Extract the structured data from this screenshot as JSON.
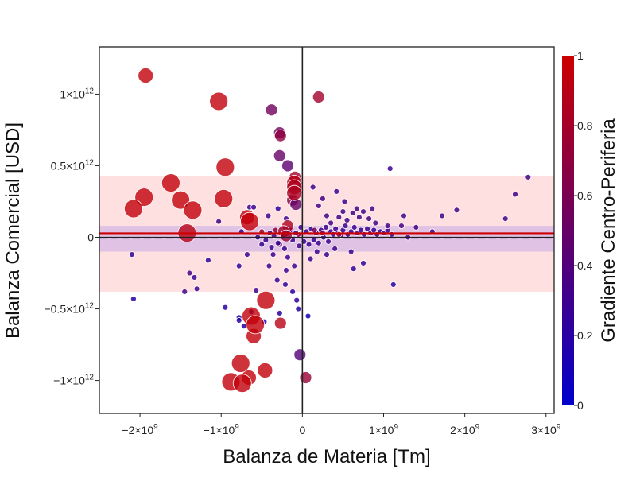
{
  "chart_data": {
    "type": "scatter",
    "xlabel": "Balanza de Materia [Tm]",
    "ylabel": "Balanza Comercial [USD]",
    "colorbar_label": "Gradiente Centro-Periferia",
    "xlim": [
      -2500000000,
      3100000000
    ],
    "ylim": [
      -1230000000000,
      1330000000000
    ],
    "x_ticks": [
      {
        "value": -2000000000,
        "mant": "−2×10",
        "exp": "9"
      },
      {
        "value": -1000000000,
        "mant": "−1×10",
        "exp": "9"
      },
      {
        "value": 0,
        "mant": "0",
        "exp": ""
      },
      {
        "value": 1000000000,
        "mant": "1×10",
        "exp": "9"
      },
      {
        "value": 2000000000,
        "mant": "2×10",
        "exp": "9"
      },
      {
        "value": 3000000000,
        "mant": "3×10",
        "exp": "9"
      }
    ],
    "y_ticks": [
      {
        "value": 1000000000000,
        "mant": "1×10",
        "exp": "12"
      },
      {
        "value": 500000000000,
        "mant": "0.5×10",
        "exp": "12"
      },
      {
        "value": 0,
        "mant": "0",
        "exp": ""
      },
      {
        "value": -500000000000,
        "mant": "−0.5×10",
        "exp": "12"
      },
      {
        "value": -1000000000000,
        "mant": "−1×10",
        "exp": "12"
      }
    ],
    "colorbar_ticks": [
      {
        "value": 0,
        "label": "0"
      },
      {
        "value": 0.2,
        "label": "0.2"
      },
      {
        "value": 0.4,
        "label": "0.4"
      },
      {
        "value": 0.6,
        "label": "0.6"
      },
      {
        "value": 0.8,
        "label": "0.8"
      },
      {
        "value": 1,
        "label": "1"
      }
    ],
    "colorscale": [
      "#0000cc",
      "#cc0000"
    ],
    "bands": [
      {
        "y0": -380000000000,
        "y1": 430000000000,
        "color": "#ffd6d6",
        "opacity": 0.75
      },
      {
        "y0": -100000000000,
        "y1": 80000000000,
        "color": "#d4b8e6",
        "opacity": 0.75
      }
    ],
    "reference_lines": [
      {
        "y": 28000000000,
        "color": "#cc0000",
        "dash": "solid"
      },
      {
        "y": -3000000000,
        "color": "#1a1a8c",
        "dash": "dash"
      }
    ],
    "zero_lines": {
      "x": 0,
      "y": 0,
      "color": "#222222"
    },
    "points": [
      {
        "x": -1930000000.0,
        "y": 1130000000000.0,
        "c": 0.95,
        "s": 3
      },
      {
        "x": -1030000000.0,
        "y": 950000000000.0,
        "c": 0.95,
        "s": 4
      },
      {
        "x": -950000000.0,
        "y": 490000000000.0,
        "c": 0.95,
        "s": 4
      },
      {
        "x": -1620000000.0,
        "y": 380000000000.0,
        "c": 0.95,
        "s": 4
      },
      {
        "x": -1950000000.0,
        "y": 280000000000.0,
        "c": 0.95,
        "s": 4
      },
      {
        "x": -1500000000.0,
        "y": 260000000000.0,
        "c": 0.95,
        "s": 4
      },
      {
        "x": -2080000000.0,
        "y": 200000000000.0,
        "c": 0.95,
        "s": 4
      },
      {
        "x": -1350000000.0,
        "y": 190000000000.0,
        "c": 0.95,
        "s": 4
      },
      {
        "x": -970000000.0,
        "y": 270000000000.0,
        "c": 0.95,
        "s": 4
      },
      {
        "x": -1420000000.0,
        "y": 30000000000.0,
        "c": 0.9,
        "s": 4
      },
      {
        "x": -650000000.0,
        "y": 110000000000.0,
        "c": 0.95,
        "s": 4
      },
      {
        "x": -680000000.0,
        "y": 140000000000.0,
        "c": 0.93,
        "s": 3
      },
      {
        "x": -450000000.0,
        "y": -440000000000.0,
        "c": 0.95,
        "s": 4
      },
      {
        "x": -630000000.0,
        "y": -550000000000.0,
        "c": 0.95,
        "s": 4
      },
      {
        "x": -580000000.0,
        "y": -610000000000.0,
        "c": 0.95,
        "s": 4
      },
      {
        "x": -600000000.0,
        "y": -690000000000.0,
        "c": 0.95,
        "s": 3
      },
      {
        "x": -270000000.0,
        "y": -600000000000.0,
        "c": 0.9,
        "s": 2
      },
      {
        "x": -760000000.0,
        "y": -880000000000.0,
        "c": 0.95,
        "s": 4
      },
      {
        "x": -880000000.0,
        "y": -1010000000000.0,
        "c": 0.95,
        "s": 4
      },
      {
        "x": -740000000.0,
        "y": -1020000000000.0,
        "c": 0.95,
        "s": 4
      },
      {
        "x": -660000000.0,
        "y": -980000000000.0,
        "c": 0.95,
        "s": 3
      },
      {
        "x": -460000000.0,
        "y": -930000000000.0,
        "c": 0.95,
        "s": 3
      },
      {
        "x": 40000000.0,
        "y": -980000000000.0,
        "c": 0.75,
        "s": 2
      },
      {
        "x": -30000000.0,
        "y": -820000000000.0,
        "c": 0.4,
        "s": 2
      },
      {
        "x": 200000000.0,
        "y": 980000000000.0,
        "c": 0.8,
        "s": 2
      },
      {
        "x": -380000000.0,
        "y": 890000000000.0,
        "c": 0.55,
        "s": 2
      },
      {
        "x": -280000000.0,
        "y": 730000000000.0,
        "c": 0.55,
        "s": 2
      },
      {
        "x": -270000000.0,
        "y": 710000000000.0,
        "c": 0.7,
        "s": 2
      },
      {
        "x": -280000000.0,
        "y": 570000000000.0,
        "c": 0.5,
        "s": 2
      },
      {
        "x": -180000000.0,
        "y": 500000000000.0,
        "c": 0.45,
        "s": 2
      },
      {
        "x": -90000000.0,
        "y": 420000000000.0,
        "c": 0.8,
        "s": 2
      },
      {
        "x": -100000000.0,
        "y": 380000000000.0,
        "c": 0.9,
        "s": 3
      },
      {
        "x": -100000000.0,
        "y": 350000000000.0,
        "c": 0.85,
        "s": 3
      },
      {
        "x": -100000000.0,
        "y": 310000000000.0,
        "c": 0.85,
        "s": 3
      },
      {
        "x": -120000000.0,
        "y": 260000000000.0,
        "c": 0.65,
        "s": 2
      },
      {
        "x": -80000000.0,
        "y": 230000000000.0,
        "c": 0.5,
        "s": 2
      },
      {
        "x": 130000000.0,
        "y": 350000000000.0,
        "c": 0.35,
        "s": 1
      },
      {
        "x": -180000000.0,
        "y": 80000000000.0,
        "c": 0.85,
        "s": 2
      },
      {
        "x": -230000000.0,
        "y": 40000000000.0,
        "c": 0.8,
        "s": 2
      },
      {
        "x": -200000000.0,
        "y": 10000000000.0,
        "c": 0.75,
        "s": 2
      },
      {
        "x": -330000000.0,
        "y": 50000000000.0,
        "c": 0.7,
        "s": 1
      },
      {
        "x": -50000000.0,
        "y": 20000000000.0,
        "c": 0.65,
        "s": 1
      },
      {
        "x": -280000000.0,
        "y": -50000000000.0,
        "c": 0.5,
        "s": 1
      },
      {
        "x": -360000000.0,
        "y": -120000000000.0,
        "c": 0.3,
        "s": 1
      },
      {
        "x": -410000000.0,
        "y": -200000000000.0,
        "c": 0.35,
        "s": 1
      },
      {
        "x": -310000000.0,
        "y": -300000000000.0,
        "c": 0.3,
        "s": 1
      },
      {
        "x": -210000000.0,
        "y": -330000000000.0,
        "c": 0.25,
        "s": 1
      },
      {
        "x": -120000000.0,
        "y": -380000000000.0,
        "c": 0.2,
        "s": 1
      },
      {
        "x": -780000000.0,
        "y": -200000000000.0,
        "c": 0.25,
        "s": 1
      },
      {
        "x": -570000000.0,
        "y": -370000000000.0,
        "c": 0.3,
        "s": 1
      },
      {
        "x": -650000000.0,
        "y": 210000000000.0,
        "c": 0.3,
        "s": 1
      },
      {
        "x": -600000000.0,
        "y": 210000000000.0,
        "c": 0.3,
        "s": 1
      },
      {
        "x": -420000000.0,
        "y": 150000000000.0,
        "c": 0.3,
        "s": 1
      },
      {
        "x": -300000000.0,
        "y": 200000000000.0,
        "c": 0.25,
        "s": 1
      },
      {
        "x": -200000000.0,
        "y": 130000000000.0,
        "c": 0.3,
        "s": 1
      },
      {
        "x": -1030000000.0,
        "y": 110000000000.0,
        "c": 0.35,
        "s": 1
      },
      {
        "x": -1330000000.0,
        "y": -280000000000.0,
        "c": 0.3,
        "s": 1
      },
      {
        "x": -1390000000.0,
        "y": -250000000000.0,
        "c": 0.35,
        "s": 1
      },
      {
        "x": -1450000000.0,
        "y": -380000000000.0,
        "c": 0.35,
        "s": 1
      },
      {
        "x": -1300000000.0,
        "y": -360000000000.0,
        "c": 0.3,
        "s": 1
      },
      {
        "x": -1160000000.0,
        "y": -160000000000.0,
        "c": 0.25,
        "s": 1
      },
      {
        "x": -950000000.0,
        "y": -490000000000.0,
        "c": 0.2,
        "s": 1
      },
      {
        "x": -780000000.0,
        "y": -560000000000.0,
        "c": 0.15,
        "s": 1
      },
      {
        "x": -780000000.0,
        "y": -580000000000.0,
        "c": 0.2,
        "s": 1
      },
      {
        "x": -720000000.0,
        "y": -620000000000.0,
        "c": 0.2,
        "s": 1
      },
      {
        "x": -630000000.0,
        "y": -520000000000.0,
        "c": 0.2,
        "s": 1
      },
      {
        "x": -470000000.0,
        "y": -590000000000.0,
        "c": 0.15,
        "s": 1
      },
      {
        "x": -280000000.0,
        "y": -530000000000.0,
        "c": 0.2,
        "s": 1
      },
      {
        "x": -50000000.0,
        "y": -500000000000.0,
        "c": 0.2,
        "s": 1
      },
      {
        "x": 70000000.0,
        "y": -550000000000.0,
        "c": 0.1,
        "s": 1
      },
      {
        "x": -70000000.0,
        "y": -440000000000.0,
        "c": 0.25,
        "s": 1
      },
      {
        "x": -2100000000.0,
        "y": -120000000000.0,
        "c": 0.25,
        "s": 1
      },
      {
        "x": -2080000000.0,
        "y": -430000000000.0,
        "c": 0.2,
        "s": 1
      },
      {
        "x": -680000000.0,
        "y": -120000000000.0,
        "c": 0.3,
        "s": 1
      },
      {
        "x": -750000000.0,
        "y": 40000000000.0,
        "c": 0.3,
        "s": 1
      },
      {
        "x": -500000000.0,
        "y": -50000000000.0,
        "c": 0.3,
        "s": 1
      },
      {
        "x": -550000000.0,
        "y": 0.0,
        "c": 0.3,
        "s": 1
      },
      {
        "x": -400000000.0,
        "y": 30000000000.0,
        "c": 0.3,
        "s": 1
      },
      {
        "x": -450000000.0,
        "y": -20000000000.0,
        "c": 0.3,
        "s": 1
      },
      {
        "x": -350000000.0,
        "y": 10000000000.0,
        "c": 0.35,
        "s": 1
      },
      {
        "x": -300000000.0,
        "y": -40000000000.0,
        "c": 0.3,
        "s": 1
      },
      {
        "x": -250000000.0,
        "y": 20000000000.0,
        "c": 0.35,
        "s": 1
      },
      {
        "x": -220000000.0,
        "y": -80000000000.0,
        "c": 0.3,
        "s": 1
      },
      {
        "x": -150000000.0,
        "y": 50000000000.0,
        "c": 0.3,
        "s": 1
      },
      {
        "x": -120000000.0,
        "y": -20000000000.0,
        "c": 0.3,
        "s": 1
      },
      {
        "x": -80000000.0,
        "y": 30000000000.0,
        "c": 0.3,
        "s": 1
      },
      {
        "x": -40000000.0,
        "y": -60000000000.0,
        "c": 0.3,
        "s": 1
      },
      {
        "x": -20000000.0,
        "y": 70000000000.0,
        "c": 0.3,
        "s": 1
      },
      {
        "x": 20000000.0,
        "y": -30000000000.0,
        "c": 0.3,
        "s": 1
      },
      {
        "x": 50000000.0,
        "y": 40000000000.0,
        "c": 0.3,
        "s": 1
      },
      {
        "x": 80000000.0,
        "y": -50000000000.0,
        "c": 0.3,
        "s": 1
      },
      {
        "x": 110000000.0,
        "y": 60000000000.0,
        "c": 0.3,
        "s": 1
      },
      {
        "x": 140000000.0,
        "y": -20000000000.0,
        "c": 0.3,
        "s": 1
      },
      {
        "x": 170000000.0,
        "y": 30000000000.0,
        "c": 0.3,
        "s": 1
      },
      {
        "x": 200000000.0,
        "y": -40000000000.0,
        "c": 0.3,
        "s": 1
      },
      {
        "x": 230000000.0,
        "y": 50000000000.0,
        "c": 0.3,
        "s": 1
      },
      {
        "x": 260000000.0,
        "y": 0.0,
        "c": 0.3,
        "s": 1
      },
      {
        "x": 290000000.0,
        "y": 70000000000.0,
        "c": 0.3,
        "s": 1
      },
      {
        "x": 320000000.0,
        "y": -30000000000.0,
        "c": 0.3,
        "s": 1
      },
      {
        "x": 350000000.0,
        "y": 40000000000.0,
        "c": 0.3,
        "s": 1
      },
      {
        "x": 380000000.0,
        "y": 20000000000.0,
        "c": 0.3,
        "s": 1
      },
      {
        "x": 410000000.0,
        "y": 60000000000.0,
        "c": 0.3,
        "s": 1
      },
      {
        "x": 440000000.0,
        "y": 30000000000.0,
        "c": 0.3,
        "s": 1
      },
      {
        "x": 470000000.0,
        "y": 10000000000.0,
        "c": 0.3,
        "s": 1
      },
      {
        "x": 500000000.0,
        "y": 50000000000.0,
        "c": 0.3,
        "s": 1
      },
      {
        "x": 530000000.0,
        "y": 80000000000.0,
        "c": 0.3,
        "s": 1
      },
      {
        "x": 560000000.0,
        "y": 20000000000.0,
        "c": 0.3,
        "s": 1
      },
      {
        "x": 600000000.0,
        "y": 40000000000.0,
        "c": 0.3,
        "s": 1
      },
      {
        "x": 640000000.0,
        "y": 70000000000.0,
        "c": 0.3,
        "s": 1
      },
      {
        "x": 680000000.0,
        "y": 30000000000.0,
        "c": 0.3,
        "s": 1
      },
      {
        "x": 720000000.0,
        "y": 50000000000.0,
        "c": 0.3,
        "s": 1
      },
      {
        "x": 760000000.0,
        "y": 20000000000.0,
        "c": 0.3,
        "s": 1
      },
      {
        "x": 800000000.0,
        "y": 60000000000.0,
        "c": 0.3,
        "s": 1
      },
      {
        "x": 840000000.0,
        "y": 30000000000.0,
        "c": 0.3,
        "s": 1
      },
      {
        "x": 880000000.0,
        "y": 50000000000.0,
        "c": 0.3,
        "s": 1
      },
      {
        "x": 920000000.0,
        "y": 20000000000.0,
        "c": 0.3,
        "s": 1
      },
      {
        "x": 960000000.0,
        "y": 40000000000.0,
        "c": 0.3,
        "s": 1
      },
      {
        "x": 1000000000.0,
        "y": 30000000000.0,
        "c": 0.3,
        "s": 1
      },
      {
        "x": 1050000000.0,
        "y": 50000000000.0,
        "c": 0.3,
        "s": 1
      },
      {
        "x": 1100000000.0,
        "y": 20000000000.0,
        "c": 0.3,
        "s": 1
      },
      {
        "x": 450000000.0,
        "y": 140000000000.0,
        "c": 0.35,
        "s": 1
      },
      {
        "x": 500000000.0,
        "y": 180000000000.0,
        "c": 0.35,
        "s": 1
      },
      {
        "x": 550000000.0,
        "y": 120000000000.0,
        "c": 0.35,
        "s": 1
      },
      {
        "x": 620000000.0,
        "y": 170000000000.0,
        "c": 0.35,
        "s": 1
      },
      {
        "x": 670000000.0,
        "y": 200000000000.0,
        "c": 0.35,
        "s": 1
      },
      {
        "x": 700000000.0,
        "y": 140000000000.0,
        "c": 0.35,
        "s": 1
      },
      {
        "x": 750000000.0,
        "y": 180000000000.0,
        "c": 0.35,
        "s": 1
      },
      {
        "x": 820000000.0,
        "y": 130000000000.0,
        "c": 0.35,
        "s": 1
      },
      {
        "x": 860000000.0,
        "y": 200000000000.0,
        "c": 0.35,
        "s": 1
      },
      {
        "x": 900000000.0,
        "y": 100000000000.0,
        "c": 0.35,
        "s": 1
      },
      {
        "x": 350000000.0,
        "y": 100000000000.0,
        "c": 0.35,
        "s": 1
      },
      {
        "x": 300000000.0,
        "y": 150000000000.0,
        "c": 0.35,
        "s": 1
      },
      {
        "x": 250000000.0,
        "y": 270000000000.0,
        "c": 0.35,
        "s": 1
      },
      {
        "x": 200000000.0,
        "y": 220000000000.0,
        "c": 0.35,
        "s": 1
      },
      {
        "x": 420000000.0,
        "y": 320000000000.0,
        "c": 0.3,
        "s": 1
      },
      {
        "x": 520000000.0,
        "y": 250000000000.0,
        "c": 0.3,
        "s": 1
      },
      {
        "x": 400000000.0,
        "y": -80000000000.0,
        "c": 0.3,
        "s": 1
      },
      {
        "x": 300000000.0,
        "y": -120000000000.0,
        "c": 0.3,
        "s": 1
      },
      {
        "x": 600000000.0,
        "y": -100000000000.0,
        "c": 0.3,
        "s": 1
      },
      {
        "x": 630000000.0,
        "y": -220000000000.0,
        "c": 0.25,
        "s": 1
      },
      {
        "x": 750000000.0,
        "y": -180000000000.0,
        "c": 0.25,
        "s": 1
      },
      {
        "x": 1120000000.0,
        "y": -330000000000.0,
        "c": 0.2,
        "s": 1
      },
      {
        "x": 180000000.0,
        "y": -100000000000.0,
        "c": 0.3,
        "s": 1
      },
      {
        "x": 100000000.0,
        "y": -150000000000.0,
        "c": 0.3,
        "s": 1
      },
      {
        "x": 1080000000.0,
        "y": 480000000000.0,
        "c": 0.3,
        "s": 1
      },
      {
        "x": 1220000000.0,
        "y": 80000000000.0,
        "c": 0.35,
        "s": 1
      },
      {
        "x": 1300000000.0,
        "y": 0.0,
        "c": 0.35,
        "s": 1
      },
      {
        "x": 1400000000.0,
        "y": 70000000000.0,
        "c": 0.35,
        "s": 1
      },
      {
        "x": 1600000000.0,
        "y": 40000000000.0,
        "c": 0.35,
        "s": 1
      },
      {
        "x": 1720000000.0,
        "y": 150000000000.0,
        "c": 0.35,
        "s": 1
      },
      {
        "x": 1900000000.0,
        "y": 190000000000.0,
        "c": 0.35,
        "s": 1
      },
      {
        "x": 1250000000.0,
        "y": 150000000000.0,
        "c": 0.35,
        "s": 1
      },
      {
        "x": 2500000000.0,
        "y": 130000000000.0,
        "c": 0.35,
        "s": 1
      },
      {
        "x": 2620000000.0,
        "y": 300000000000.0,
        "c": 0.35,
        "s": 1
      },
      {
        "x": 2780000000.0,
        "y": 420000000000.0,
        "c": 0.35,
        "s": 1
      },
      {
        "x": 1050000000.0,
        "y": 80000000000.0,
        "c": 0.35,
        "s": 1
      },
      {
        "x": 150000000.0,
        "y": 50000000000.0,
        "c": 0.6,
        "s": 1
      },
      {
        "x": 250000000.0,
        "y": 30000000000.0,
        "c": 0.65,
        "s": 1
      },
      {
        "x": 450000000.0,
        "y": 20000000000.0,
        "c": 0.7,
        "s": 1
      },
      {
        "x": -500000000.0,
        "y": 40000000000.0,
        "c": 0.75,
        "s": 1
      },
      {
        "x": -380000000.0,
        "y": -70000000000.0,
        "c": 0.3,
        "s": 1
      },
      {
        "x": -180000000.0,
        "y": -140000000000.0,
        "c": 0.3,
        "s": 1
      },
      {
        "x": -100000000.0,
        "y": -200000000000.0,
        "c": 0.3,
        "s": 1
      },
      {
        "x": -200000000.0,
        "y": -230000000000.0,
        "c": 0.3,
        "s": 1
      }
    ]
  }
}
